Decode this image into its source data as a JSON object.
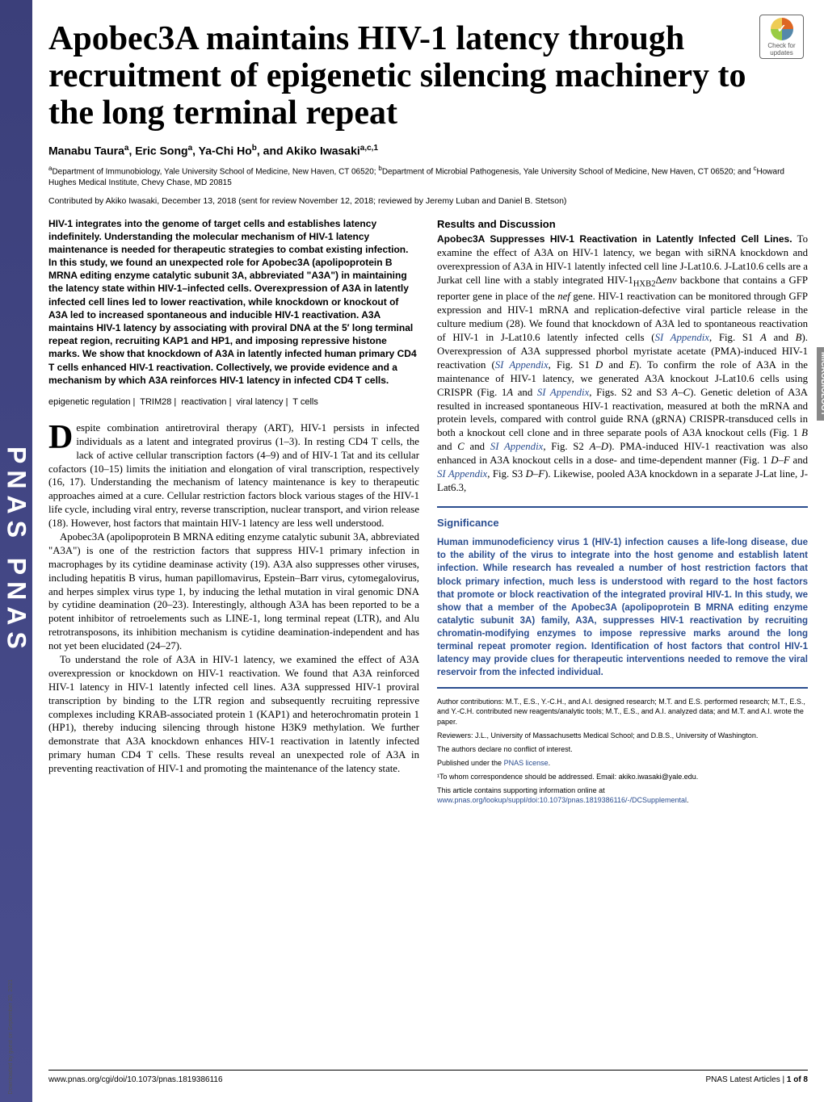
{
  "journal_stripe": "PNAS  PNAS",
  "crossmark_label": "Check for updates",
  "title": "Apobec3A maintains HIV-1 latency through recruitment of epigenetic silencing machinery to the long terminal repeat",
  "authors_html": "Manabu Taura<sup>a</sup>, Eric Song<sup>a</sup>, Ya-Chi Ho<sup>b</sup>, and Akiko Iwasaki<sup>a,c,1</sup>",
  "affiliations_html": "<sup>a</sup>Department of Immunobiology, Yale University School of Medicine, New Haven, CT 06520; <sup>b</sup>Department of Microbial Pathogenesis, Yale University School of Medicine, New Haven, CT 06520; and <sup>c</sup>Howard Hughes Medical Institute, Chevy Chase, MD 20815",
  "contributed": "Contributed by Akiko Iwasaki, December 13, 2018 (sent for review November 12, 2018; reviewed by Jeremy Luban and Daniel B. Stetson)",
  "abstract": "HIV-1 integrates into the genome of target cells and establishes latency indefinitely. Understanding the molecular mechanism of HIV-1 latency maintenance is needed for therapeutic strategies to combat existing infection. In this study, we found an unexpected role for Apobec3A (apolipoprotein B MRNA editing enzyme catalytic subunit 3A, abbreviated \"A3A\") in maintaining the latency state within HIV-1–infected cells. Overexpression of A3A in latently infected cell lines led to lower reactivation, while knockdown or knockout of A3A led to increased spontaneous and inducible HIV-1 reactivation. A3A maintains HIV-1 latency by associating with proviral DNA at the 5′ long terminal repeat region, recruiting KAP1 and HP1, and imposing repressive histone marks. We show that knockdown of A3A in latently infected human primary CD4 T cells enhanced HIV-1 reactivation. Collectively, we provide evidence and a mechanism by which A3A reinforces HIV-1 latency in infected CD4 T cells.",
  "keywords": [
    "epigenetic regulation",
    "TRIM28",
    "reactivation",
    "viral latency",
    "T cells"
  ],
  "body_para1_first": "D",
  "body_para1_rest": "espite combination antiretroviral therapy (ART), HIV-1 persists in infected individuals as a latent and integrated provirus (1–3). In resting CD4 T cells, the lack of active cellular transcription factors (4–9) and of HIV-1 Tat and its cellular cofactors (10–15) limits the initiation and elongation of viral transcription, respectively (16, 17). Understanding the mechanism of latency maintenance is key to therapeutic approaches aimed at a cure. Cellular restriction factors block various stages of the HIV-1 life cycle, including viral entry, reverse transcription, nuclear transport, and virion release (18). However, host factors that maintain HIV-1 latency are less well understood.",
  "body_para2": "Apobec3A (apolipoprotein B MRNA editing enzyme catalytic subunit 3A, abbreviated \"A3A\") is one of the restriction factors that suppress HIV-1 primary infection in macrophages by its cytidine deaminase activity (19). A3A also suppresses other viruses, including hepatitis B virus, human papillomavirus, Epstein–Barr virus, cytomegalovirus, and herpes simplex virus type 1, by inducing the lethal mutation in viral genomic DNA by cytidine deamination (20–23). Interestingly, although A3A has been reported to be a potent inhibitor of retroelements such as LINE-1, long terminal repeat (LTR), and Alu retrotransposons, its inhibition mechanism is cytidine deamination-independent and has not yet been elucidated (24–27).",
  "body_para3": "To understand the role of A3A in HIV-1 latency, we examined the effect of A3A overexpression or knockdown on HIV-1 reactivation. We found that A3A reinforced HIV-1 latency in HIV-1 latently infected cell lines. A3A suppressed HIV-1 proviral transcription by binding to the LTR region and subsequently recruiting repressive complexes including KRAB-associated protein 1 (KAP1) and heterochromatin protein 1 (HP1), thereby inducing silencing through histone H3K9 methylation. We further demonstrate that A3A knockdown enhances HIV-1 reactivation in latently infected primary human CD4 T cells. These results reveal an unexpected role of A3A in preventing reactivation of HIV-1 and promoting the maintenance of the latency state.",
  "results_head": "Results and Discussion",
  "subsection_title": "Apobec3A Suppresses HIV-1 Reactivation in Latently Infected Cell Lines.",
  "results_body": " To examine the effect of A3A on HIV-1 latency, we began with siRNA knockdown and overexpression of A3A in HIV-1 latently infected cell line J-Lat10.6. J-Lat10.6 cells are a Jurkat cell line with a stably integrated HIV-1<sub>HXB2</sub>Δ<span class=\"italic\">env</span> backbone that contains a GFP reporter gene in place of the <span class=\"italic\">nef</span> gene. HIV-1 reactivation can be monitored through GFP expression and HIV-1 mRNA and replication-defective viral particle release in the culture medium (28). We found that knockdown of A3A led to spontaneous reactivation of HIV-1 in J-Lat10.6 latently infected cells (<span class=\"si-link\">SI Appendix</span>, Fig. S1 <span class=\"italic\">A</span> and <span class=\"italic\">B</span>). Overexpression of A3A suppressed phorbol myristate acetate (PMA)-induced HIV-1 reactivation (<span class=\"si-link\">SI Appendix</span>, Fig. S1 <span class=\"italic\">D</span> and <span class=\"italic\">E</span>). To confirm the role of A3A in the maintenance of HIV-1 latency, we generated A3A knockout J-Lat10.6 cells using CRISPR (Fig. 1<span class=\"italic\">A</span> and <span class=\"si-link\">SI Appendix</span>, Figs. S2 and S3 <span class=\"italic\">A–C</span>). Genetic deletion of A3A resulted in increased spontaneous HIV-1 reactivation, measured at both the mRNA and protein levels, compared with control guide RNA (gRNA) CRISPR-transduced cells in both a knockout cell clone and in three separate pools of A3A knockout cells (Fig. 1 <span class=\"italic\">B</span> and <span class=\"italic\">C</span> and <span class=\"si-link\">SI Appendix</span>, Fig. S2 <span class=\"italic\">A–D</span>). PMA-induced HIV-1 reactivation was also enhanced in A3A knockout cells in a dose- and time-dependent manner (Fig. 1 <span class=\"italic\">D–F</span> and <span class=\"si-link\">SI Appendix</span>, Fig. S3 <span class=\"italic\">D–F</span>). Likewise, pooled A3A knockdown in a separate J-Lat line, J-Lat6.3,",
  "significance_title": "Significance",
  "significance_text": "Human immunodeficiency virus 1 (HIV-1) infection causes a life-long disease, due to the ability of the virus to integrate into the host genome and establish latent infection. While research has revealed a number of host restriction factors that block primary infection, much less is understood with regard to the host factors that promote or block reactivation of the integrated proviral HIV-1. In this study, we show that a member of the Apobec3A (apolipoprotein B MRNA editing enzyme catalytic subunit 3A) family, A3A, suppresses HIV-1 reactivation by recruiting chromatin-modifying enzymes to impose repressive marks around the long terminal repeat promoter region. Identification of host factors that control HIV-1 latency may provide clues for therapeutic interventions needed to remove the viral reservoir from the infected individual.",
  "meta": {
    "contrib": "Author contributions: M.T., E.S., Y.-C.H., and A.I. designed research; M.T. and E.S. performed research; M.T., E.S., and Y.-C.H. contributed new reagents/analytic tools; M.T., E.S., and A.I. analyzed data; and M.T. and A.I. wrote the paper.",
    "reviewers": "Reviewers: J.L., University of Massachusetts Medical School; and D.B.S., University of Washington.",
    "coi": "The authors declare no conflict of interest.",
    "license_pre": "Published under the ",
    "license_link": "PNAS license",
    "license_post": ".",
    "corr": "¹To whom correspondence should be addressed. Email: akiko.iwasaki@yale.edu.",
    "si_pre": "This article contains supporting information online at ",
    "si_link": "www.pnas.org/lookup/suppl/doi:10.1073/pnas.1819386116/-/DCSupplemental",
    "si_post": "."
  },
  "side_label": "MICROBIOLOGY",
  "footer": {
    "doi": "www.pnas.org/cgi/doi/10.1073/pnas.1819386116",
    "right_pre": "PNAS Latest Articles | ",
    "right_page": "1 of 8"
  },
  "download_note": "Downloaded by guest on September 30, 2021",
  "colors": {
    "stripe": "#3b3f7a",
    "sig_blue": "#2a4d8f",
    "side_gray": "#888888"
  }
}
